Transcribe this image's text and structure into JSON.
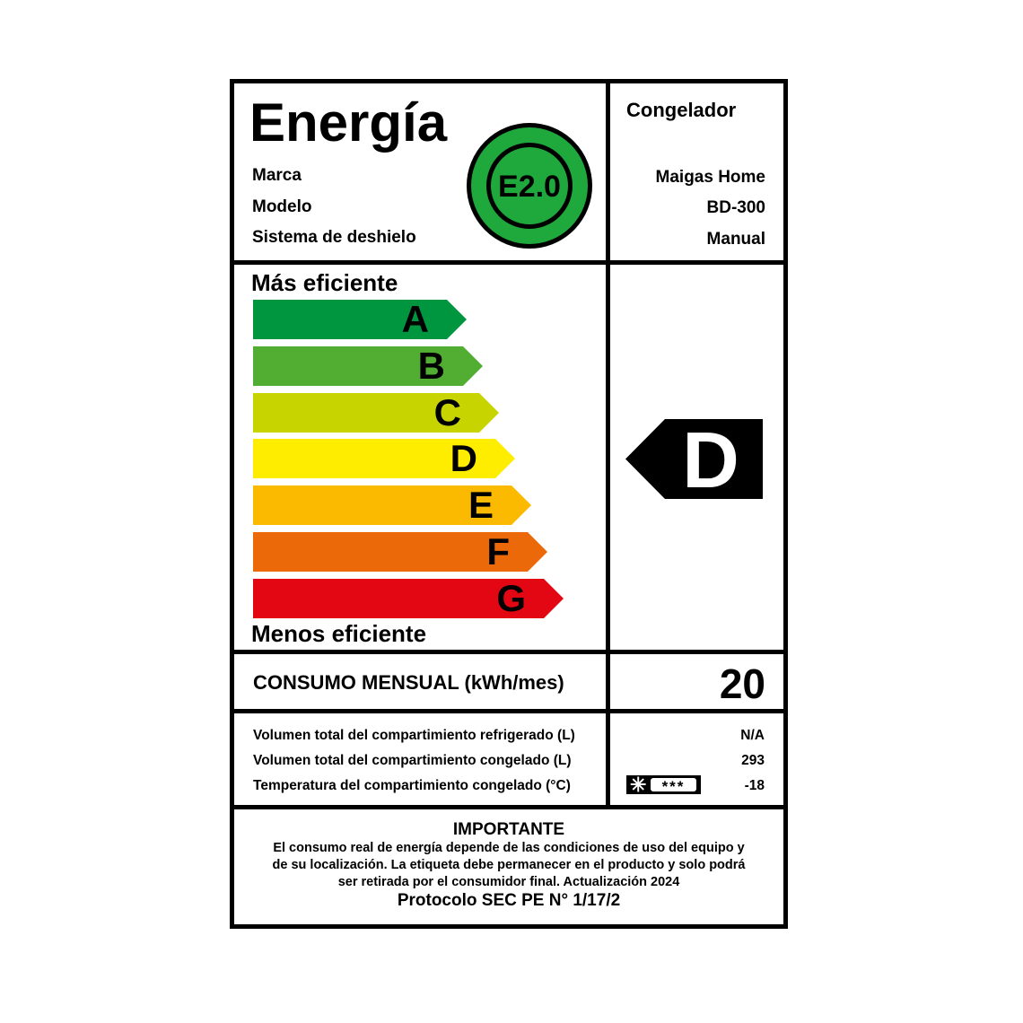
{
  "header": {
    "title": "Energía",
    "category": "Congelador"
  },
  "fields": [
    {
      "label": "Marca",
      "value": "Maigas Home"
    },
    {
      "label": "Modelo",
      "value": "BD-300"
    },
    {
      "label": "Sistema de deshielo",
      "value": "Manual"
    }
  ],
  "badge": {
    "text": "E2.0",
    "color": "#1fa83c"
  },
  "scale": {
    "top_label": "Más eficiente",
    "bottom_label": "Menos eficiente",
    "classes": [
      {
        "letter": "A",
        "color": "#009640"
      },
      {
        "letter": "B",
        "color": "#52ae32"
      },
      {
        "letter": "C",
        "color": "#c8d400"
      },
      {
        "letter": "D",
        "color": "#ffed00"
      },
      {
        "letter": "E",
        "color": "#fbba00"
      },
      {
        "letter": "F",
        "color": "#eb6909"
      },
      {
        "letter": "G",
        "color": "#e30613"
      }
    ],
    "rating": "D"
  },
  "consumption": {
    "label": "CONSUMO MENSUAL (kWh/mes)",
    "value": "20"
  },
  "specs": [
    {
      "label": "Volumen total del compartimiento refrigerado (L)",
      "value": "N/A"
    },
    {
      "label": "Volumen total del compartimiento congelado (L)",
      "value": "293"
    },
    {
      "label": "Temperatura del compartimiento congelado (°C)",
      "value": "-18"
    }
  ],
  "freezer_stars": "***",
  "footer": {
    "title": "IMPORTANTE",
    "lines": [
      "El consumo real de energía depende de las condiciones de uso del equipo y",
      "de su localización. La etiqueta debe permanecer en el producto y solo podrá",
      "ser retirada por el consumidor final. Actualización 2024"
    ],
    "protocol": "Protocolo SEC PE N° 1/17/2"
  }
}
